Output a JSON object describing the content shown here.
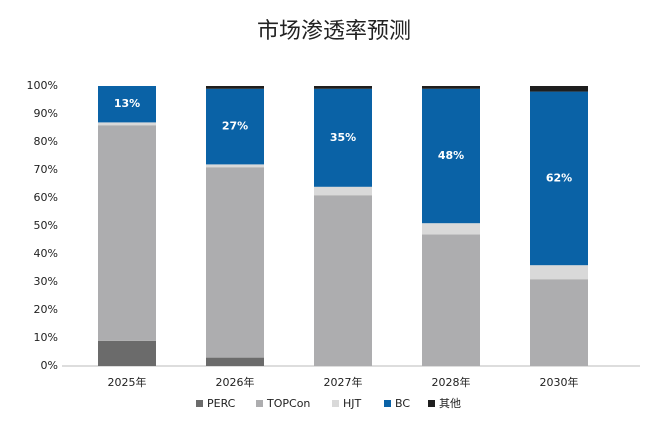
{
  "chart_data": {
    "type": "stacked_bar",
    "title": "市场渗透率预测",
    "categories": [
      "2025年",
      "2026年",
      "2027年",
      "2028年",
      "2030年"
    ],
    "series": [
      {
        "name": "PERC",
        "color": "#6b6b6b",
        "values": [
          9,
          3,
          0,
          0,
          0
        ]
      },
      {
        "name": "TOPCon",
        "color": "#adadaf",
        "values": [
          77,
          68,
          61,
          47,
          31
        ]
      },
      {
        "name": "HJT",
        "color": "#d9d9d9",
        "values": [
          1,
          1,
          3,
          4,
          5
        ]
      },
      {
        "name": "BC",
        "color": "#0a62a6",
        "values": [
          13,
          27,
          35,
          48,
          62
        ],
        "value_labels": [
          "13%",
          "27%",
          "35%",
          "48%",
          "62%"
        ]
      },
      {
        "name": "其他",
        "color": "#1e1e1e",
        "values": [
          0,
          1,
          1,
          1,
          2
        ]
      }
    ],
    "ylim": [
      0,
      100
    ],
    "yticks": [
      {
        "value": 0,
        "label": "0%"
      },
      {
        "value": 10,
        "label": "10%"
      },
      {
        "value": 20,
        "label": "20%"
      },
      {
        "value": 30,
        "label": "30%"
      },
      {
        "value": 40,
        "label": "40%"
      },
      {
        "value": 50,
        "label": "50%"
      },
      {
        "value": 60,
        "label": "60%"
      },
      {
        "value": 70,
        "label": "70%"
      },
      {
        "value": 80,
        "label": "80%"
      },
      {
        "value": 90,
        "label": "90%"
      },
      {
        "value": 100,
        "label": "100%"
      }
    ],
    "grid": false,
    "legend": "bottom"
  }
}
